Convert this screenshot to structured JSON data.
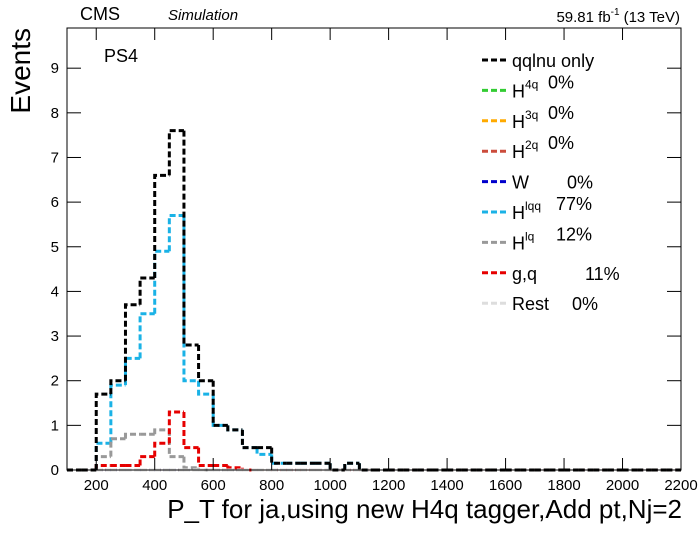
{
  "chart_data": {
    "type": "histogram",
    "experiment": "CMS",
    "status": "Simulation",
    "lumi": "59.81 fb",
    "lumi_sup": "-1",
    "energy": "(13 TeV)",
    "annotation": "PS4",
    "x_label": "P_T for ja,using new H4q tagger,Add pt,Nj=2",
    "y_label": "Events",
    "xlim": [
      100,
      2200
    ],
    "ylim": [
      0,
      9.9
    ],
    "xticks": [
      200,
      400,
      600,
      800,
      1000,
      1200,
      1400,
      1600,
      1800,
      2000,
      2200
    ],
    "yticks": [
      0,
      1,
      2,
      3,
      4,
      5,
      6,
      7,
      8,
      9
    ],
    "bins": [
      100,
      150,
      200,
      250,
      300,
      350,
      400,
      450,
      500,
      550,
      600,
      650,
      700,
      750,
      800,
      850,
      900,
      950,
      1000,
      1050,
      1100,
      1150,
      1200,
      1250,
      1300,
      1350,
      1400,
      1450,
      1500,
      1550,
      1600,
      1650,
      1700,
      1750,
      1800,
      1850,
      1900,
      1950,
      2000,
      2050,
      2100,
      2150,
      2200
    ],
    "series": [
      {
        "name": "qqlnu only",
        "color": "#000000",
        "values": [
          0,
          0,
          1.7,
          2.0,
          3.7,
          4.3,
          6.6,
          7.6,
          2.8,
          2.0,
          1.0,
          0.9,
          0.5,
          0.5,
          0.15,
          0.15,
          0.15,
          0.15,
          0,
          0.15,
          0,
          0,
          0,
          0,
          0,
          0,
          0,
          0,
          0,
          0,
          0,
          0,
          0,
          0,
          0,
          0,
          0,
          0,
          0,
          0,
          0,
          0
        ]
      },
      {
        "name": "H",
        "superscript": "4q",
        "share": "0%",
        "color": "#33cc33",
        "values": [
          0,
          0,
          0,
          0,
          0,
          0,
          0,
          0,
          0,
          0,
          0,
          0,
          0,
          0,
          0,
          0,
          0,
          0,
          0,
          0,
          0,
          0,
          0,
          0,
          0,
          0,
          0,
          0,
          0,
          0,
          0,
          0,
          0,
          0,
          0,
          0,
          0,
          0,
          0,
          0,
          0,
          0
        ]
      },
      {
        "name": "H",
        "superscript": "3q",
        "share": "0%",
        "color": "#ffaa00",
        "values": [
          0,
          0,
          0,
          0,
          0,
          0,
          0,
          0,
          0,
          0,
          0,
          0,
          0,
          0,
          0,
          0,
          0,
          0,
          0,
          0,
          0,
          0,
          0,
          0,
          0,
          0,
          0,
          0,
          0,
          0,
          0,
          0,
          0,
          0,
          0,
          0,
          0,
          0,
          0,
          0,
          0,
          0
        ]
      },
      {
        "name": "H",
        "superscript": "2q",
        "share": "0%",
        "color": "#cc4c3c",
        "values": [
          0,
          0,
          0,
          0,
          0,
          0,
          0,
          0,
          0,
          0,
          0,
          0,
          0,
          0,
          0,
          0,
          0,
          0,
          0,
          0,
          0,
          0,
          0,
          0,
          0,
          0,
          0,
          0,
          0,
          0,
          0,
          0,
          0,
          0,
          0,
          0,
          0,
          0,
          0,
          0,
          0,
          0
        ]
      },
      {
        "name": "W",
        "share": "0%",
        "color": "#0000cc",
        "values": [
          0,
          0,
          0,
          0,
          0,
          0,
          0,
          0,
          0,
          0,
          0,
          0,
          0,
          0,
          0,
          0,
          0,
          0,
          0,
          0,
          0,
          0,
          0,
          0,
          0,
          0,
          0,
          0,
          0,
          0,
          0,
          0,
          0,
          0,
          0,
          0,
          0,
          0,
          0,
          0,
          0,
          0
        ]
      },
      {
        "name": "H",
        "superscript": "lqq",
        "share": "77%",
        "color": "#1ab2e6",
        "values": [
          0,
          0,
          0.6,
          1.9,
          2.5,
          3.5,
          4.9,
          5.7,
          2.0,
          1.7,
          1.0,
          0.9,
          0.5,
          0.35,
          0.15,
          0.15,
          0.15,
          0.15,
          0,
          0.15,
          0,
          0,
          0,
          0,
          0,
          0,
          0,
          0,
          0,
          0,
          0,
          0,
          0,
          0,
          0,
          0,
          0,
          0,
          0,
          0,
          0,
          0
        ]
      },
      {
        "name": "H",
        "superscript": "lq",
        "share": "12%",
        "color": "#999999",
        "values": [
          0,
          0,
          0.3,
          0.7,
          0.8,
          0.8,
          0.9,
          0.3,
          0.05,
          0,
          0,
          0,
          0,
          0,
          0,
          0,
          0,
          0,
          0,
          0,
          0,
          0,
          0,
          0,
          0,
          0,
          0,
          0,
          0,
          0,
          0,
          0,
          0,
          0,
          0,
          0,
          0,
          0,
          0,
          0,
          0,
          0
        ]
      },
      {
        "name": "g,q",
        "share": "11%",
        "color": "#e60000",
        "values": [
          0,
          0,
          0.1,
          0.1,
          0.1,
          0.3,
          0.6,
          1.3,
          0.5,
          0.1,
          0.1,
          0.05,
          0,
          0,
          0,
          0,
          0,
          0,
          0,
          0,
          0,
          0,
          0,
          0,
          0,
          0,
          0,
          0,
          0,
          0,
          0,
          0,
          0,
          0,
          0,
          0,
          0,
          0,
          0,
          0,
          0,
          0
        ]
      },
      {
        "name": "Rest",
        "share": "0%",
        "color": "#dddddd",
        "values": [
          0,
          0,
          0,
          0,
          0,
          0,
          0,
          0,
          0,
          0,
          0,
          0,
          0,
          0,
          0,
          0,
          0,
          0,
          0,
          0,
          0,
          0,
          0,
          0,
          0,
          0,
          0,
          0,
          0,
          0,
          0,
          0,
          0,
          0,
          0,
          0,
          0,
          0,
          0,
          0,
          0,
          0
        ]
      }
    ]
  }
}
